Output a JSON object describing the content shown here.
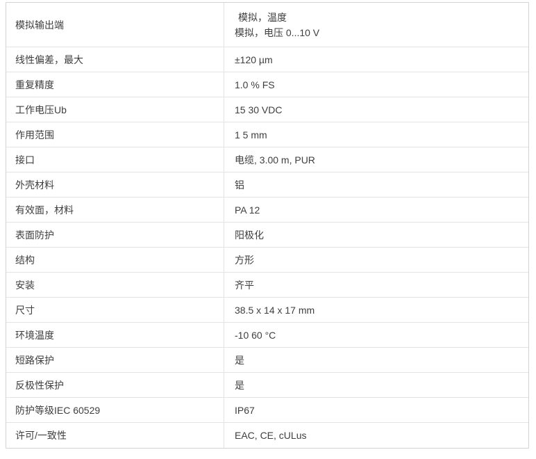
{
  "colors": {
    "background": "#ffffff",
    "text": "#3e3e3e",
    "border_outer": "#d2d2d2",
    "border_inner": "#e3e3e3"
  },
  "table": {
    "rows": [
      {
        "label": "模拟输出端",
        "values": [
          "模拟，温度",
          "模拟，电压 0...10 V"
        ],
        "indent_first": true,
        "tall": true
      },
      {
        "label": "线性偏差，最大",
        "values": [
          "±120 µm"
        ]
      },
      {
        "label": "重复精度",
        "values": [
          "1.0 % FS"
        ]
      },
      {
        "label": "工作电压Ub",
        "values": [
          "15 30 VDC"
        ]
      },
      {
        "label": "作用范围",
        "values": [
          "1 5 mm"
        ]
      },
      {
        "label": "接口",
        "values": [
          "电缆, 3.00 m, PUR"
        ]
      },
      {
        "label": "外壳材料",
        "values": [
          "铝"
        ]
      },
      {
        "label": "有效面，材料",
        "values": [
          "PA 12"
        ]
      },
      {
        "label": "表面防护",
        "values": [
          "阳极化"
        ]
      },
      {
        "label": "结构",
        "values": [
          "方形"
        ]
      },
      {
        "label": "安装",
        "values": [
          "齐平"
        ]
      },
      {
        "label": "尺寸",
        "values": [
          "38.5 x 14 x 17 mm"
        ]
      },
      {
        "label": "环境温度",
        "values": [
          "-10 60 °C"
        ]
      },
      {
        "label": "短路保护",
        "values": [
          "是"
        ]
      },
      {
        "label": "反极性保护",
        "values": [
          "是"
        ]
      },
      {
        "label": "防护等级IEC 60529",
        "values": [
          "IP67"
        ]
      },
      {
        "label": "许可/一致性",
        "values": [
          "EAC, CE, cULus"
        ]
      }
    ]
  }
}
